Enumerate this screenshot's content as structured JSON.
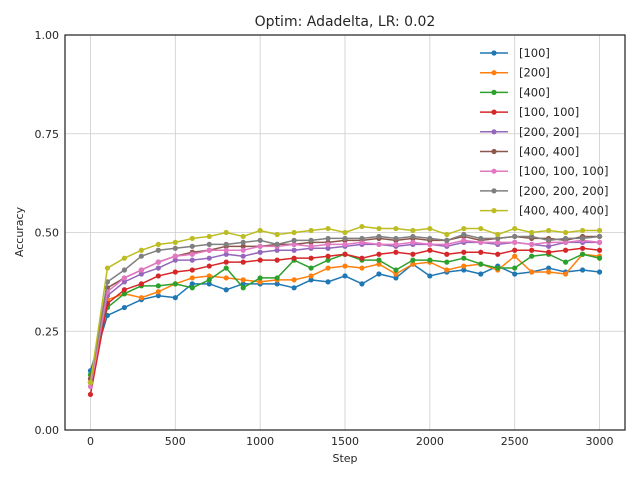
{
  "chart_data": {
    "type": "line",
    "title": "Optim: Adadelta, LR: 0.02",
    "xlabel": "Step",
    "ylabel": "Accuracy",
    "xlim": [
      -150,
      3150
    ],
    "ylim": [
      0,
      1
    ],
    "xticks": [
      0,
      500,
      1000,
      1500,
      2000,
      2500,
      3000
    ],
    "yticks": [
      0.0,
      0.25,
      0.5,
      0.75,
      1.0
    ],
    "xtick_labels": [
      "0",
      "500",
      "1000",
      "1500",
      "2000",
      "2500",
      "3000"
    ],
    "ytick_labels": [
      "0.00",
      "0.25",
      "0.50",
      "0.75",
      "1.00"
    ],
    "grid": true,
    "legend_position": "upper right",
    "x": [
      0,
      100,
      200,
      300,
      400,
      500,
      600,
      700,
      800,
      900,
      1000,
      1100,
      1200,
      1300,
      1400,
      1500,
      1600,
      1700,
      1800,
      1900,
      2000,
      2100,
      2200,
      2300,
      2400,
      2500,
      2600,
      2700,
      2800,
      2900,
      3000
    ],
    "series": [
      {
        "name": "[100]",
        "color": "#1f77b4",
        "values": [
          0.15,
          0.29,
          0.31,
          0.33,
          0.34,
          0.335,
          0.37,
          0.37,
          0.355,
          0.37,
          0.37,
          0.37,
          0.36,
          0.38,
          0.375,
          0.39,
          0.37,
          0.395,
          0.385,
          0.42,
          0.39,
          0.4,
          0.405,
          0.395,
          0.415,
          0.395,
          0.4,
          0.41,
          0.4,
          0.405,
          0.4
        ]
      },
      {
        "name": "[200]",
        "color": "#ff7f0e",
        "values": [
          0.12,
          0.33,
          0.345,
          0.335,
          0.35,
          0.37,
          0.385,
          0.39,
          0.385,
          0.38,
          0.375,
          0.38,
          0.38,
          0.39,
          0.41,
          0.415,
          0.41,
          0.42,
          0.395,
          0.42,
          0.425,
          0.405,
          0.415,
          0.42,
          0.405,
          0.44,
          0.4,
          0.4,
          0.395,
          0.445,
          0.44
        ]
      },
      {
        "name": "[400]",
        "color": "#2ca02c",
        "values": [
          0.14,
          0.31,
          0.345,
          0.365,
          0.365,
          0.37,
          0.36,
          0.38,
          0.41,
          0.36,
          0.385,
          0.385,
          0.43,
          0.41,
          0.43,
          0.445,
          0.43,
          0.43,
          0.405,
          0.43,
          0.43,
          0.425,
          0.435,
          0.42,
          0.41,
          0.41,
          0.44,
          0.445,
          0.425,
          0.445,
          0.435
        ]
      },
      {
        "name": "[100, 100]",
        "color": "#d62728",
        "values": [
          0.09,
          0.32,
          0.355,
          0.37,
          0.39,
          0.4,
          0.405,
          0.415,
          0.425,
          0.425,
          0.43,
          0.43,
          0.435,
          0.435,
          0.44,
          0.445,
          0.435,
          0.445,
          0.45,
          0.445,
          0.455,
          0.445,
          0.45,
          0.45,
          0.445,
          0.455,
          0.455,
          0.45,
          0.455,
          0.46,
          0.455
        ]
      },
      {
        "name": "[200, 200]",
        "color": "#9467bd",
        "values": [
          0.12,
          0.34,
          0.375,
          0.395,
          0.41,
          0.43,
          0.43,
          0.435,
          0.445,
          0.44,
          0.45,
          0.455,
          0.455,
          0.46,
          0.46,
          0.465,
          0.47,
          0.47,
          0.465,
          0.47,
          0.47,
          0.465,
          0.475,
          0.475,
          0.47,
          0.475,
          0.47,
          0.465,
          0.475,
          0.475,
          0.475
        ]
      },
      {
        "name": "[400, 400]",
        "color": "#8c564b",
        "values": [
          0.13,
          0.36,
          0.385,
          0.405,
          0.425,
          0.44,
          0.45,
          0.455,
          0.465,
          0.465,
          0.465,
          0.47,
          0.47,
          0.475,
          0.475,
          0.48,
          0.48,
          0.485,
          0.48,
          0.485,
          0.48,
          0.48,
          0.49,
          0.48,
          0.485,
          0.49,
          0.485,
          0.485,
          0.48,
          0.49,
          0.49
        ]
      },
      {
        "name": "[100, 100, 100]",
        "color": "#e377c2",
        "values": [
          0.11,
          0.35,
          0.385,
          0.405,
          0.425,
          0.44,
          0.445,
          0.455,
          0.455,
          0.455,
          0.465,
          0.465,
          0.47,
          0.465,
          0.47,
          0.47,
          0.475,
          0.47,
          0.47,
          0.475,
          0.47,
          0.47,
          0.48,
          0.475,
          0.475,
          0.475,
          0.47,
          0.475,
          0.475,
          0.48,
          0.475
        ]
      },
      {
        "name": "[200, 200, 200]",
        "color": "#7f7f7f",
        "values": [
          0.12,
          0.375,
          0.405,
          0.44,
          0.455,
          0.46,
          0.465,
          0.47,
          0.47,
          0.475,
          0.48,
          0.47,
          0.48,
          0.48,
          0.485,
          0.485,
          0.485,
          0.49,
          0.485,
          0.49,
          0.485,
          0.48,
          0.495,
          0.485,
          0.485,
          0.49,
          0.49,
          0.48,
          0.485,
          0.485,
          0.49
        ]
      },
      {
        "name": "[400, 400, 400]",
        "color": "#bcbd22",
        "values": [
          0.12,
          0.41,
          0.435,
          0.455,
          0.47,
          0.475,
          0.485,
          0.49,
          0.5,
          0.49,
          0.505,
          0.495,
          0.5,
          0.505,
          0.51,
          0.5,
          0.515,
          0.51,
          0.51,
          0.505,
          0.51,
          0.495,
          0.51,
          0.51,
          0.495,
          0.51,
          0.5,
          0.505,
          0.5,
          0.505,
          0.505
        ]
      }
    ]
  }
}
